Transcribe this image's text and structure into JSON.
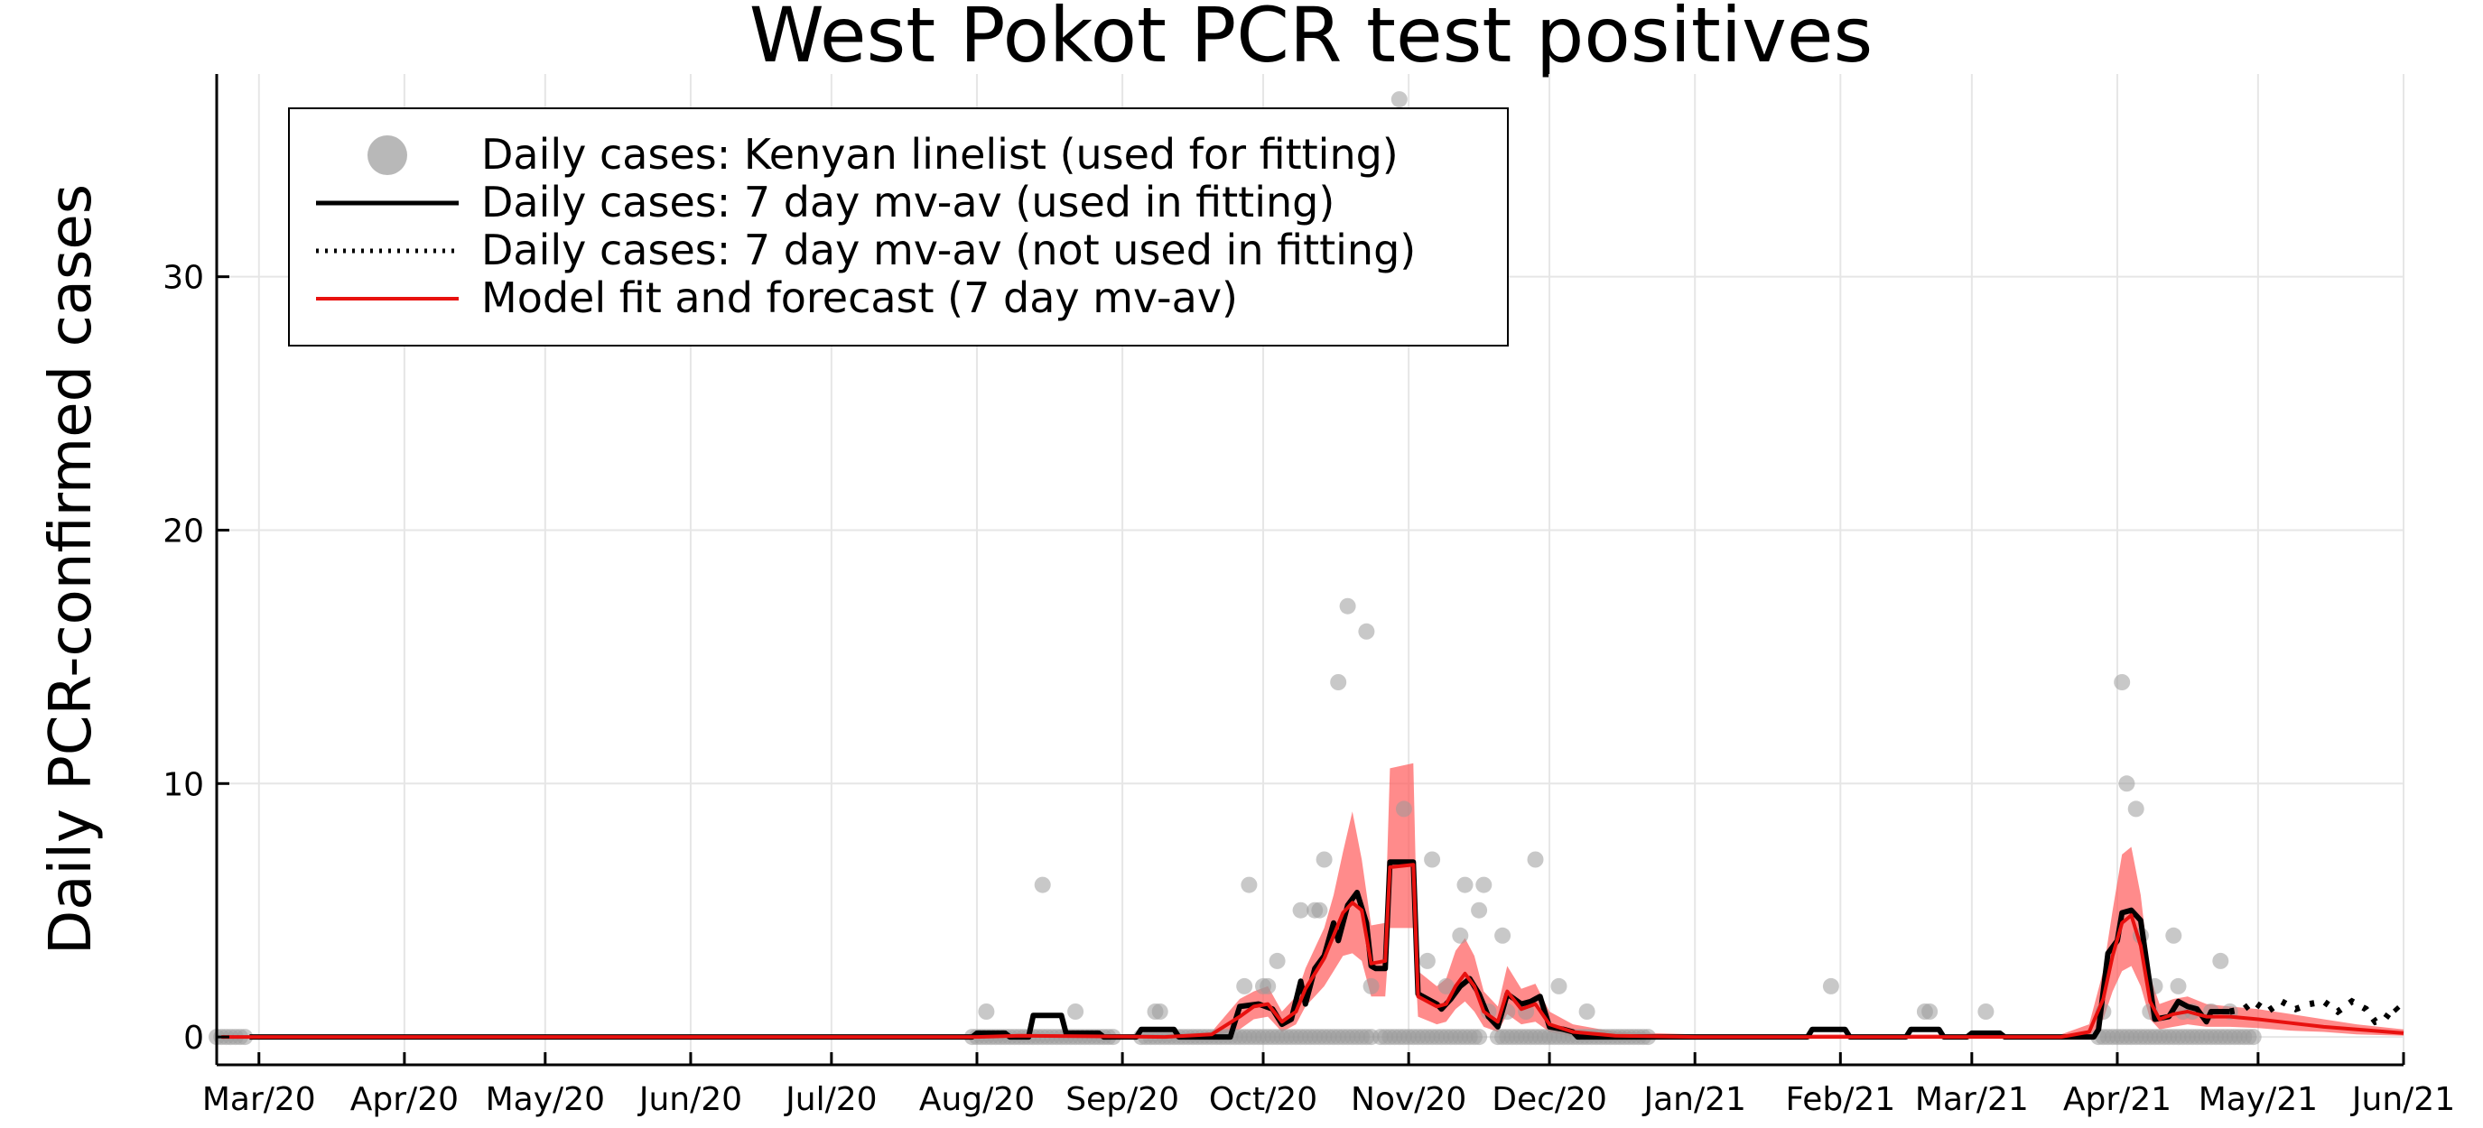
{
  "chart_data": {
    "type": "line",
    "title": "West Pokot PCR test positives",
    "xlabel": "",
    "ylabel": "Daily PCR-confirmed cases",
    "xlim": [
      "2020-02-21",
      "2021-06-01"
    ],
    "ylim": [
      -1.1,
      38
    ],
    "yticks": [
      0,
      10,
      20,
      30
    ],
    "xticks": [
      {
        "date": "2020-03-01",
        "label": "Mar/20"
      },
      {
        "date": "2020-04-01",
        "label": "Apr/20"
      },
      {
        "date": "2020-05-01",
        "label": "May/20"
      },
      {
        "date": "2020-06-01",
        "label": "Jun/20"
      },
      {
        "date": "2020-07-01",
        "label": "Jul/20"
      },
      {
        "date": "2020-08-01",
        "label": "Aug/20"
      },
      {
        "date": "2020-09-01",
        "label": "Sep/20"
      },
      {
        "date": "2020-10-01",
        "label": "Oct/20"
      },
      {
        "date": "2020-11-01",
        "label": "Nov/20"
      },
      {
        "date": "2020-12-01",
        "label": "Dec/20"
      },
      {
        "date": "2021-01-01",
        "label": "Jan/21"
      },
      {
        "date": "2021-02-01",
        "label": "Feb/21"
      },
      {
        "date": "2021-03-01",
        "label": "Mar/21"
      },
      {
        "date": "2021-04-01",
        "label": "Apr/21"
      },
      {
        "date": "2021-05-01",
        "label": "May/21"
      },
      {
        "date": "2021-06-01",
        "label": "Jun/21"
      }
    ],
    "grid": true,
    "legend_position": "top-left",
    "colors": {
      "points": "#9a9a9a",
      "used": "#000000",
      "notused": "#000000",
      "model": "#e8110f",
      "band": "#ff5a5a"
    },
    "legend": [
      {
        "key": "points",
        "label": "Daily cases: Kenyan linelist (used for fitting)"
      },
      {
        "key": "used",
        "label": "Daily cases: 7 day mv-av (used in fitting)"
      },
      {
        "key": "notused",
        "label": "Daily cases: 7 day mv-av (not used in fitting)"
      },
      {
        "key": "model",
        "label": "Model fit and forecast (7 day mv-av)"
      }
    ],
    "zero_case_days": [
      [
        "2020-02-21",
        "2020-02-27"
      ],
      [
        "2020-07-31",
        "2020-08-30"
      ],
      [
        "2020-09-05",
        "2020-10-24"
      ],
      [
        "2020-10-26",
        "2020-11-16"
      ],
      [
        "2020-11-20",
        "2020-12-22"
      ],
      [
        "2021-03-28",
        "2021-04-30"
      ]
    ],
    "daily_cases": [
      {
        "x": "2020-08-03",
        "y": 1
      },
      {
        "x": "2020-08-15",
        "y": 6
      },
      {
        "x": "2020-08-22",
        "y": 1
      },
      {
        "x": "2020-09-08",
        "y": 1
      },
      {
        "x": "2020-09-09",
        "y": 1
      },
      {
        "x": "2020-09-28",
        "y": 6
      },
      {
        "x": "2020-09-27",
        "y": 2
      },
      {
        "x": "2020-10-01",
        "y": 2
      },
      {
        "x": "2020-10-02",
        "y": 2
      },
      {
        "x": "2020-10-04",
        "y": 3
      },
      {
        "x": "2020-10-09",
        "y": 5
      },
      {
        "x": "2020-10-12",
        "y": 5
      },
      {
        "x": "2020-10-13",
        "y": 5
      },
      {
        "x": "2020-10-14",
        "y": 7
      },
      {
        "x": "2020-10-17",
        "y": 14
      },
      {
        "x": "2020-10-19",
        "y": 17
      },
      {
        "x": "2020-10-23",
        "y": 16
      },
      {
        "x": "2020-10-24",
        "y": 2
      },
      {
        "x": "2020-10-30",
        "y": 37
      },
      {
        "x": "2020-10-31",
        "y": 9
      },
      {
        "x": "2020-11-05",
        "y": 3
      },
      {
        "x": "2020-11-06",
        "y": 7
      },
      {
        "x": "2020-11-09",
        "y": 2
      },
      {
        "x": "2020-11-12",
        "y": 4
      },
      {
        "x": "2020-11-13",
        "y": 6
      },
      {
        "x": "2020-11-16",
        "y": 5
      },
      {
        "x": "2020-11-17",
        "y": 6
      },
      {
        "x": "2020-11-18",
        "y": 1
      },
      {
        "x": "2020-11-21",
        "y": 4
      },
      {
        "x": "2020-11-22",
        "y": 1
      },
      {
        "x": "2020-11-26",
        "y": 1
      },
      {
        "x": "2020-11-28",
        "y": 7
      },
      {
        "x": "2020-12-03",
        "y": 2
      },
      {
        "x": "2020-12-09",
        "y": 1
      },
      {
        "x": "2021-01-30",
        "y": 2
      },
      {
        "x": "2021-02-19",
        "y": 1
      },
      {
        "x": "2021-02-20",
        "y": 1
      },
      {
        "x": "2021-03-04",
        "y": 1
      },
      {
        "x": "2021-03-29",
        "y": 1
      },
      {
        "x": "2021-04-02",
        "y": 14
      },
      {
        "x": "2021-04-03",
        "y": 10
      },
      {
        "x": "2021-04-05",
        "y": 9
      },
      {
        "x": "2021-04-06",
        "y": 4
      },
      {
        "x": "2021-04-08",
        "y": 1
      },
      {
        "x": "2021-04-09",
        "y": 2
      },
      {
        "x": "2021-04-13",
        "y": 4
      },
      {
        "x": "2021-04-14",
        "y": 2
      },
      {
        "x": "2021-04-15",
        "y": 1
      },
      {
        "x": "2021-04-17",
        "y": 1
      },
      {
        "x": "2021-04-21",
        "y": 1
      },
      {
        "x": "2021-04-23",
        "y": 3
      },
      {
        "x": "2021-04-25",
        "y": 1
      }
    ],
    "mvav_used": [
      {
        "x": "2020-02-28",
        "y": 0
      },
      {
        "x": "2020-07-31",
        "y": 0
      },
      {
        "x": "2020-08-01",
        "y": 0.15
      },
      {
        "x": "2020-08-07",
        "y": 0.15
      },
      {
        "x": "2020-08-08",
        "y": 0
      },
      {
        "x": "2020-08-12",
        "y": 0
      },
      {
        "x": "2020-08-13",
        "y": 0.85
      },
      {
        "x": "2020-08-19",
        "y": 0.85
      },
      {
        "x": "2020-08-20",
        "y": 0.15
      },
      {
        "x": "2020-08-27",
        "y": 0.15
      },
      {
        "x": "2020-08-28",
        "y": 0
      },
      {
        "x": "2020-09-04",
        "y": 0
      },
      {
        "x": "2020-09-05",
        "y": 0.3
      },
      {
        "x": "2020-09-12",
        "y": 0.3
      },
      {
        "x": "2020-09-13",
        "y": 0
      },
      {
        "x": "2020-09-24",
        "y": 0
      },
      {
        "x": "2020-09-26",
        "y": 1.2
      },
      {
        "x": "2020-09-30",
        "y": 1.3
      },
      {
        "x": "2020-10-03",
        "y": 1.1
      },
      {
        "x": "2020-10-05",
        "y": 0.5
      },
      {
        "x": "2020-10-07",
        "y": 0.7
      },
      {
        "x": "2020-10-09",
        "y": 2.2
      },
      {
        "x": "2020-10-10",
        "y": 1.3
      },
      {
        "x": "2020-10-12",
        "y": 2.7
      },
      {
        "x": "2020-10-14",
        "y": 3.2
      },
      {
        "x": "2020-10-16",
        "y": 4.5
      },
      {
        "x": "2020-10-17",
        "y": 3.8
      },
      {
        "x": "2020-10-19",
        "y": 5.2
      },
      {
        "x": "2020-10-21",
        "y": 5.7
      },
      {
        "x": "2020-10-23",
        "y": 4.5
      },
      {
        "x": "2020-10-24",
        "y": 2.8
      },
      {
        "x": "2020-10-25",
        "y": 2.7
      },
      {
        "x": "2020-10-27",
        "y": 2.7
      },
      {
        "x": "2020-10-28",
        "y": 6.9
      },
      {
        "x": "2020-11-02",
        "y": 6.9
      },
      {
        "x": "2020-11-03",
        "y": 1.7
      },
      {
        "x": "2020-11-07",
        "y": 1.3
      },
      {
        "x": "2020-11-08",
        "y": 1.1
      },
      {
        "x": "2020-11-10",
        "y": 1.5
      },
      {
        "x": "2020-11-12",
        "y": 2.0
      },
      {
        "x": "2020-11-14",
        "y": 2.3
      },
      {
        "x": "2020-11-16",
        "y": 1.7
      },
      {
        "x": "2020-11-18",
        "y": 0.8
      },
      {
        "x": "2020-11-20",
        "y": 0.4
      },
      {
        "x": "2020-11-22",
        "y": 1.7
      },
      {
        "x": "2020-11-25",
        "y": 1.3
      },
      {
        "x": "2020-11-27",
        "y": 1.4
      },
      {
        "x": "2020-11-29",
        "y": 1.6
      },
      {
        "x": "2020-12-01",
        "y": 0.4
      },
      {
        "x": "2020-12-04",
        "y": 0.3
      },
      {
        "x": "2020-12-06",
        "y": 0.2
      },
      {
        "x": "2020-12-07",
        "y": 0
      },
      {
        "x": "2021-01-25",
        "y": 0
      },
      {
        "x": "2021-01-26",
        "y": 0.3
      },
      {
        "x": "2021-02-02",
        "y": 0.3
      },
      {
        "x": "2021-02-03",
        "y": 0
      },
      {
        "x": "2021-02-15",
        "y": 0
      },
      {
        "x": "2021-02-16",
        "y": 0.3
      },
      {
        "x": "2021-02-22",
        "y": 0.3
      },
      {
        "x": "2021-02-23",
        "y": 0
      },
      {
        "x": "2021-02-28",
        "y": 0
      },
      {
        "x": "2021-03-01",
        "y": 0.15
      },
      {
        "x": "2021-03-07",
        "y": 0.15
      },
      {
        "x": "2021-03-08",
        "y": 0
      },
      {
        "x": "2021-03-27",
        "y": 0
      },
      {
        "x": "2021-03-28",
        "y": 0.3
      },
      {
        "x": "2021-03-30",
        "y": 3.3
      },
      {
        "x": "2021-04-01",
        "y": 3.8
      },
      {
        "x": "2021-04-02",
        "y": 4.9
      },
      {
        "x": "2021-04-04",
        "y": 5.0
      },
      {
        "x": "2021-04-06",
        "y": 4.6
      },
      {
        "x": "2021-04-08",
        "y": 2.0
      },
      {
        "x": "2021-04-09",
        "y": 0.7
      },
      {
        "x": "2021-04-12",
        "y": 0.8
      },
      {
        "x": "2021-04-14",
        "y": 1.4
      },
      {
        "x": "2021-04-16",
        "y": 1.2
      },
      {
        "x": "2021-04-18",
        "y": 1.1
      },
      {
        "x": "2021-04-20",
        "y": 0.6
      },
      {
        "x": "2021-04-21",
        "y": 1.0
      },
      {
        "x": "2021-04-25",
        "y": 1.0
      }
    ],
    "mvav_not_used": [
      {
        "x": "2021-04-25",
        "y": 1.0
      },
      {
        "x": "2021-04-28",
        "y": 1.1
      },
      {
        "x": "2021-04-30",
        "y": 1.4
      },
      {
        "x": "2021-05-03",
        "y": 1.0
      },
      {
        "x": "2021-05-06",
        "y": 1.4
      },
      {
        "x": "2021-05-09",
        "y": 1.1
      },
      {
        "x": "2021-05-12",
        "y": 1.3
      },
      {
        "x": "2021-05-15",
        "y": 1.4
      },
      {
        "x": "2021-05-18",
        "y": 1.0
      },
      {
        "x": "2021-05-21",
        "y": 1.4
      },
      {
        "x": "2021-05-24",
        "y": 1.1
      },
      {
        "x": "2021-05-26",
        "y": 0.6
      },
      {
        "x": "2021-05-28",
        "y": 0.7
      },
      {
        "x": "2021-05-30",
        "y": 1.2
      },
      {
        "x": "2021-06-01",
        "y": 0.8
      }
    ],
    "model_fit": [
      {
        "x": "2020-02-22",
        "y": 0
      },
      {
        "x": "2020-08-01",
        "y": 0
      },
      {
        "x": "2020-08-10",
        "y": 0.05
      },
      {
        "x": "2020-09-10",
        "y": 0
      },
      {
        "x": "2020-09-20",
        "y": 0.1
      },
      {
        "x": "2020-09-26",
        "y": 0.8
      },
      {
        "x": "2020-09-29",
        "y": 1.2
      },
      {
        "x": "2020-10-02",
        "y": 1.3
      },
      {
        "x": "2020-10-05",
        "y": 0.6
      },
      {
        "x": "2020-10-08",
        "y": 1.0
      },
      {
        "x": "2020-10-10",
        "y": 1.9
      },
      {
        "x": "2020-10-12",
        "y": 2.5
      },
      {
        "x": "2020-10-14",
        "y": 3.1
      },
      {
        "x": "2020-10-16",
        "y": 4.0
      },
      {
        "x": "2020-10-18",
        "y": 4.9
      },
      {
        "x": "2020-10-20",
        "y": 5.3
      },
      {
        "x": "2020-10-22",
        "y": 5.0
      },
      {
        "x": "2020-10-24",
        "y": 2.9
      },
      {
        "x": "2020-10-27",
        "y": 3.0
      },
      {
        "x": "2020-10-28",
        "y": 6.7
      },
      {
        "x": "2020-11-02",
        "y": 6.8
      },
      {
        "x": "2020-11-03",
        "y": 1.6
      },
      {
        "x": "2020-11-07",
        "y": 1.2
      },
      {
        "x": "2020-11-09",
        "y": 1.3
      },
      {
        "x": "2020-11-11",
        "y": 2.0
      },
      {
        "x": "2020-11-13",
        "y": 2.5
      },
      {
        "x": "2020-11-15",
        "y": 2.0
      },
      {
        "x": "2020-11-17",
        "y": 1.0
      },
      {
        "x": "2020-11-20",
        "y": 0.6
      },
      {
        "x": "2020-11-22",
        "y": 1.8
      },
      {
        "x": "2020-11-25",
        "y": 1.1
      },
      {
        "x": "2020-11-28",
        "y": 1.3
      },
      {
        "x": "2020-12-01",
        "y": 0.5
      },
      {
        "x": "2020-12-06",
        "y": 0.2
      },
      {
        "x": "2020-12-15",
        "y": 0.05
      },
      {
        "x": "2021-01-01",
        "y": 0
      },
      {
        "x": "2021-03-20",
        "y": 0
      },
      {
        "x": "2021-03-26",
        "y": 0.2
      },
      {
        "x": "2021-03-29",
        "y": 1.5
      },
      {
        "x": "2021-03-31",
        "y": 3.2
      },
      {
        "x": "2021-04-02",
        "y": 4.5
      },
      {
        "x": "2021-04-04",
        "y": 4.8
      },
      {
        "x": "2021-04-06",
        "y": 3.6
      },
      {
        "x": "2021-04-08",
        "y": 1.4
      },
      {
        "x": "2021-04-10",
        "y": 0.7
      },
      {
        "x": "2021-04-13",
        "y": 0.9
      },
      {
        "x": "2021-04-16",
        "y": 1.0
      },
      {
        "x": "2021-04-20",
        "y": 0.8
      },
      {
        "x": "2021-04-25",
        "y": 0.8
      },
      {
        "x": "2021-05-01",
        "y": 0.7
      },
      {
        "x": "2021-05-08",
        "y": 0.55
      },
      {
        "x": "2021-05-15",
        "y": 0.4
      },
      {
        "x": "2021-05-22",
        "y": 0.3
      },
      {
        "x": "2021-06-01",
        "y": 0.15
      }
    ],
    "model_band": [
      {
        "x": "2020-02-22",
        "lo": 0,
        "hi": 0
      },
      {
        "x": "2020-08-01",
        "lo": 0,
        "hi": 0.1
      },
      {
        "x": "2020-09-10",
        "lo": 0,
        "hi": 0.1
      },
      {
        "x": "2020-09-20",
        "lo": 0,
        "hi": 0.2
      },
      {
        "x": "2020-09-26",
        "lo": 0.3,
        "hi": 1.5
      },
      {
        "x": "2020-09-29",
        "lo": 0.7,
        "hi": 1.8
      },
      {
        "x": "2020-10-02",
        "lo": 0.8,
        "hi": 2.0
      },
      {
        "x": "2020-10-05",
        "lo": 0.2,
        "hi": 1.0
      },
      {
        "x": "2020-10-08",
        "lo": 0.5,
        "hi": 1.6
      },
      {
        "x": "2020-10-10",
        "lo": 1.2,
        "hi": 2.7
      },
      {
        "x": "2020-10-12",
        "lo": 1.6,
        "hi": 3.5
      },
      {
        "x": "2020-10-14",
        "lo": 2.0,
        "hi": 4.3
      },
      {
        "x": "2020-10-16",
        "lo": 2.6,
        "hi": 5.6
      },
      {
        "x": "2020-10-18",
        "lo": 3.2,
        "hi": 7.3
      },
      {
        "x": "2020-10-20",
        "lo": 3.3,
        "hi": 8.9
      },
      {
        "x": "2020-10-22",
        "lo": 3.0,
        "hi": 7.0
      },
      {
        "x": "2020-10-24",
        "lo": 1.6,
        "hi": 4.4
      },
      {
        "x": "2020-10-27",
        "lo": 1.6,
        "hi": 4.5
      },
      {
        "x": "2020-10-28",
        "lo": 4.3,
        "hi": 10.6
      },
      {
        "x": "2020-11-02",
        "lo": 4.3,
        "hi": 10.8
      },
      {
        "x": "2020-11-03",
        "lo": 0.8,
        "hi": 2.6
      },
      {
        "x": "2020-11-07",
        "lo": 0.5,
        "hi": 2.0
      },
      {
        "x": "2020-11-09",
        "lo": 0.6,
        "hi": 2.3
      },
      {
        "x": "2020-11-11",
        "lo": 1.1,
        "hi": 3.4
      },
      {
        "x": "2020-11-13",
        "lo": 1.4,
        "hi": 3.9
      },
      {
        "x": "2020-11-15",
        "lo": 1.0,
        "hi": 3.2
      },
      {
        "x": "2020-11-17",
        "lo": 0.4,
        "hi": 1.8
      },
      {
        "x": "2020-11-20",
        "lo": 0.2,
        "hi": 1.2
      },
      {
        "x": "2020-11-22",
        "lo": 0.9,
        "hi": 2.8
      },
      {
        "x": "2020-11-25",
        "lo": 0.5,
        "hi": 1.9
      },
      {
        "x": "2020-11-28",
        "lo": 0.6,
        "hi": 2.1
      },
      {
        "x": "2020-12-01",
        "lo": 0.2,
        "hi": 1.0
      },
      {
        "x": "2020-12-06",
        "lo": 0,
        "hi": 0.5
      },
      {
        "x": "2020-12-15",
        "lo": 0,
        "hi": 0.2
      },
      {
        "x": "2021-01-01",
        "lo": 0,
        "hi": 0.1
      },
      {
        "x": "2021-03-20",
        "lo": 0,
        "hi": 0.1
      },
      {
        "x": "2021-03-26",
        "lo": 0,
        "hi": 0.5
      },
      {
        "x": "2021-03-29",
        "lo": 0.7,
        "hi": 2.6
      },
      {
        "x": "2021-03-31",
        "lo": 1.8,
        "hi": 5.0
      },
      {
        "x": "2021-04-02",
        "lo": 2.6,
        "hi": 7.2
      },
      {
        "x": "2021-04-04",
        "lo": 2.8,
        "hi": 7.5
      },
      {
        "x": "2021-04-06",
        "lo": 2.0,
        "hi": 5.6
      },
      {
        "x": "2021-04-08",
        "lo": 0.7,
        "hi": 2.4
      },
      {
        "x": "2021-04-10",
        "lo": 0.3,
        "hi": 1.3
      },
      {
        "x": "2021-04-13",
        "lo": 0.4,
        "hi": 1.5
      },
      {
        "x": "2021-04-16",
        "lo": 0.5,
        "hi": 1.6
      },
      {
        "x": "2021-04-20",
        "lo": 0.4,
        "hi": 1.3
      },
      {
        "x": "2021-04-25",
        "lo": 0.4,
        "hi": 1.2
      },
      {
        "x": "2021-05-01",
        "lo": 0.35,
        "hi": 1.1
      },
      {
        "x": "2021-05-08",
        "lo": 0.25,
        "hi": 0.9
      },
      {
        "x": "2021-05-15",
        "lo": 0.2,
        "hi": 0.7
      },
      {
        "x": "2021-05-22",
        "lo": 0.1,
        "hi": 0.5
      },
      {
        "x": "2021-06-01",
        "lo": 0.05,
        "hi": 0.3
      }
    ]
  }
}
